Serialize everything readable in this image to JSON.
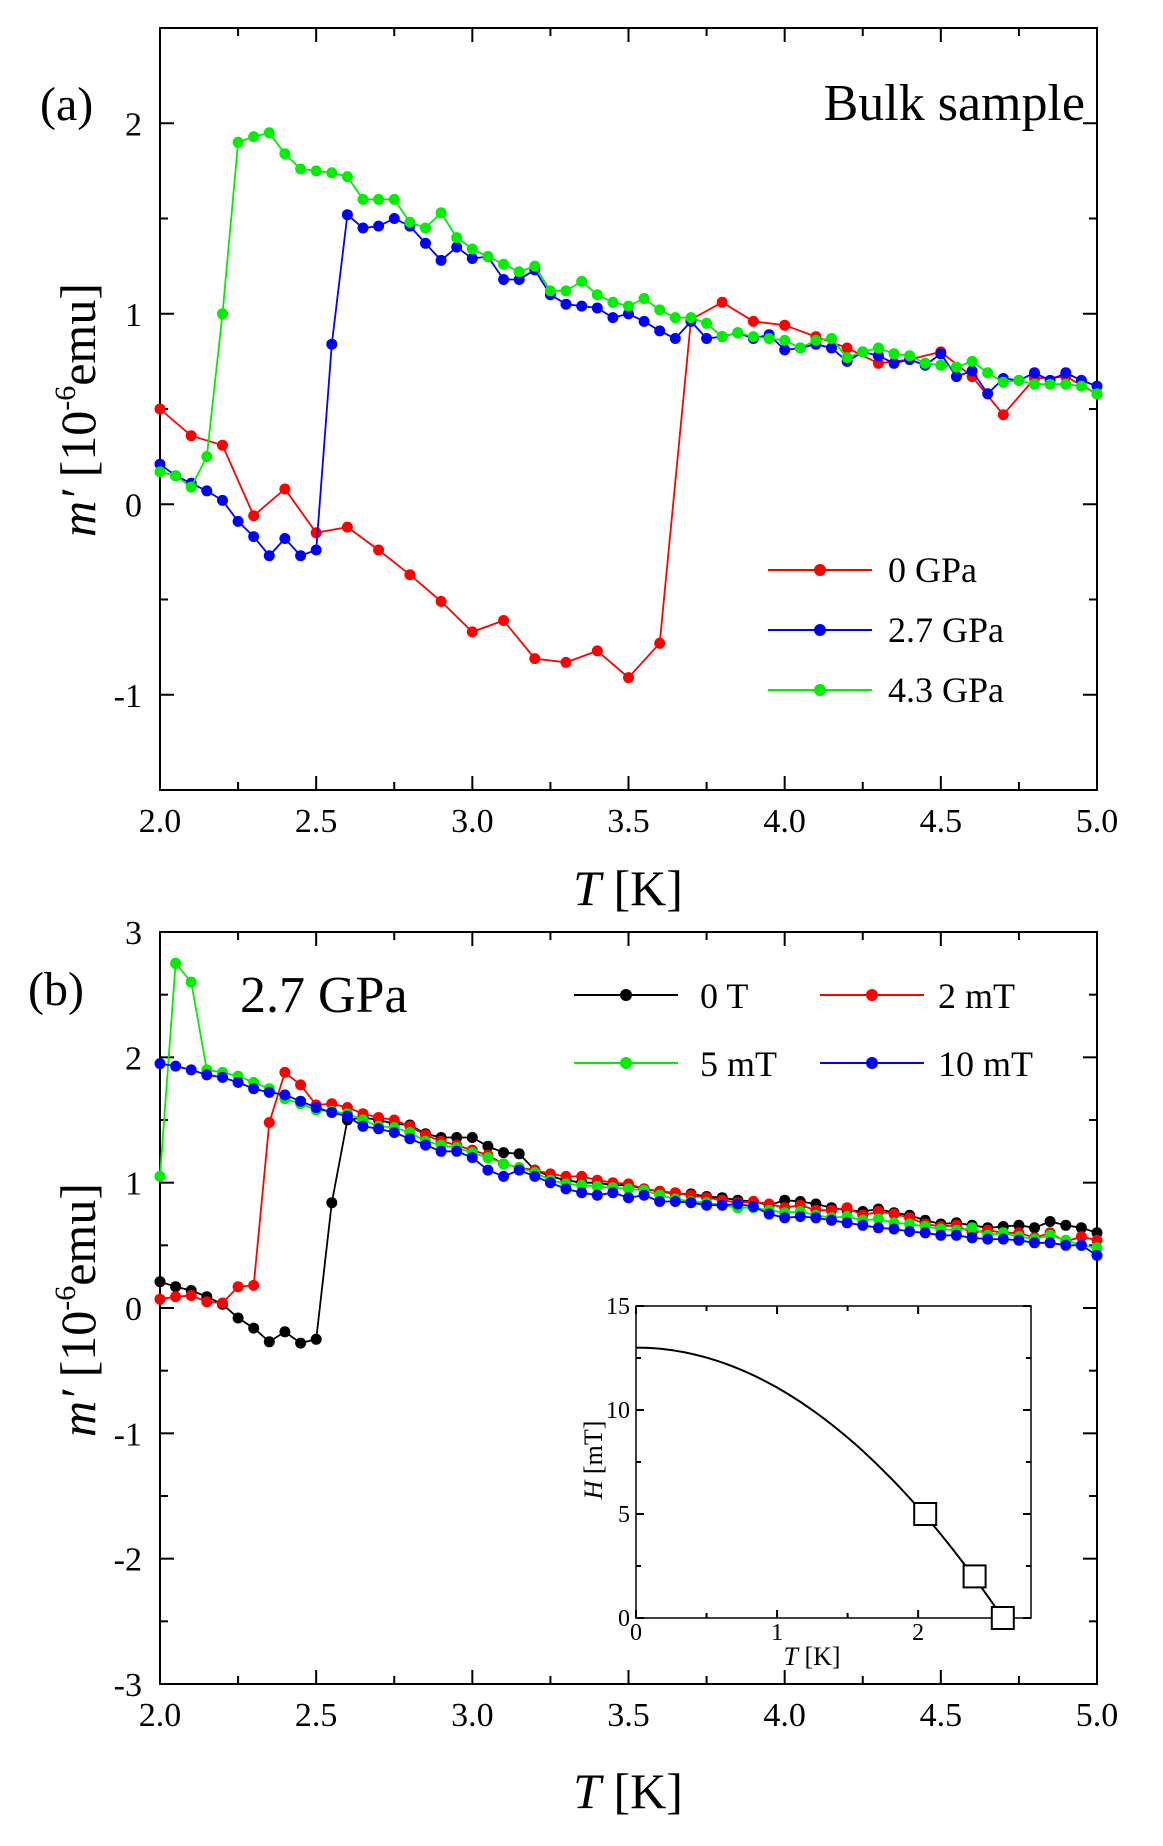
{
  "chart_data": [
    {
      "panel": "(a)",
      "type": "line",
      "annotation": "Bulk sample",
      "xlabel_italic": "T",
      "xlabel_unit": " [K]",
      "ylabel_italic": "m′",
      "ylabel_prefix": " [10",
      "ylabel_exp": "-6",
      "ylabel_suffix": "emu]",
      "xlim": [
        2.0,
        5.0
      ],
      "ylim": [
        -1.5,
        2.5
      ],
      "xticks": [
        2.0,
        2.5,
        3.0,
        3.5,
        4.0,
        4.5,
        5.0
      ],
      "xtick_labels": [
        "2.0",
        "2.5",
        "3.0",
        "3.5",
        "4.0",
        "4.5",
        "5.0"
      ],
      "yticks": [
        -1,
        0,
        1,
        2
      ],
      "ytick_labels": [
        "-1",
        "0",
        "1",
        "2"
      ],
      "legend": "center-right",
      "series": [
        {
          "name": "0 GPa",
          "color": "#ff0000",
          "x": [
            2.0,
            2.1,
            2.2,
            2.3,
            2.4,
            2.5,
            2.6,
            2.7,
            2.8,
            2.9,
            3.0,
            3.1,
            3.2,
            3.3,
            3.4,
            3.5,
            3.6,
            3.7,
            3.8,
            3.9,
            4.0,
            4.1,
            4.2,
            4.3,
            4.4,
            4.5,
            4.6,
            4.7,
            4.8,
            4.9,
            5.0
          ],
          "y": [
            0.5,
            0.36,
            0.31,
            -0.06,
            0.08,
            -0.15,
            -0.12,
            -0.24,
            -0.37,
            -0.51,
            -0.67,
            -0.61,
            -0.81,
            -0.83,
            -0.77,
            -0.91,
            -0.73,
            0.97,
            1.06,
            0.96,
            0.94,
            0.88,
            0.82,
            0.74,
            0.76,
            0.8,
            0.67,
            0.47,
            0.66,
            0.67,
            0.58
          ]
        },
        {
          "name": "2.7 GPa",
          "color": "#0000ff",
          "x": [
            2.0,
            2.05,
            2.1,
            2.15,
            2.2,
            2.25,
            2.3,
            2.35,
            2.4,
            2.45,
            2.5,
            2.55,
            2.6,
            2.65,
            2.7,
            2.75,
            2.8,
            2.85,
            2.9,
            2.95,
            3.0,
            3.05,
            3.1,
            3.15,
            3.2,
            3.25,
            3.3,
            3.35,
            3.4,
            3.45,
            3.5,
            3.55,
            3.6,
            3.65,
            3.7,
            3.75,
            3.8,
            3.85,
            3.9,
            3.95,
            4.0,
            4.05,
            4.1,
            4.15,
            4.2,
            4.25,
            4.3,
            4.35,
            4.4,
            4.45,
            4.5,
            4.55,
            4.6,
            4.65,
            4.7,
            4.75,
            4.8,
            4.85,
            4.9,
            4.95,
            5.0
          ],
          "y": [
            0.21,
            0.15,
            0.11,
            0.07,
            0.02,
            -0.09,
            -0.17,
            -0.27,
            -0.18,
            -0.27,
            -0.24,
            0.84,
            1.52,
            1.45,
            1.46,
            1.5,
            1.46,
            1.37,
            1.28,
            1.35,
            1.29,
            1.3,
            1.18,
            1.18,
            1.23,
            1.1,
            1.05,
            1.04,
            1.03,
            0.98,
            1.0,
            0.96,
            0.91,
            0.87,
            0.96,
            0.87,
            0.88,
            0.9,
            0.87,
            0.89,
            0.81,
            0.82,
            0.84,
            0.82,
            0.75,
            0.8,
            0.78,
            0.74,
            0.76,
            0.73,
            0.79,
            0.67,
            0.7,
            0.58,
            0.66,
            0.65,
            0.69,
            0.65,
            0.69,
            0.65,
            0.62
          ]
        },
        {
          "name": "4.3 GPa",
          "color": "#00ee00",
          "x": [
            2.0,
            2.05,
            2.1,
            2.15,
            2.2,
            2.25,
            2.3,
            2.35,
            2.4,
            2.45,
            2.5,
            2.55,
            2.6,
            2.65,
            2.7,
            2.75,
            2.8,
            2.85,
            2.9,
            2.95,
            3.0,
            3.05,
            3.1,
            3.15,
            3.2,
            3.25,
            3.3,
            3.35,
            3.4,
            3.45,
            3.5,
            3.55,
            3.6,
            3.65,
            3.7,
            3.75,
            3.8,
            3.85,
            3.9,
            3.95,
            4.0,
            4.05,
            4.1,
            4.15,
            4.2,
            4.25,
            4.3,
            4.35,
            4.4,
            4.45,
            4.5,
            4.55,
            4.6,
            4.65,
            4.7,
            4.75,
            4.8,
            4.85,
            4.9,
            4.95,
            5.0
          ],
          "y": [
            0.17,
            0.15,
            0.09,
            0.25,
            1.0,
            1.9,
            1.93,
            1.95,
            1.84,
            1.76,
            1.75,
            1.74,
            1.72,
            1.6,
            1.6,
            1.6,
            1.48,
            1.45,
            1.53,
            1.4,
            1.34,
            1.3,
            1.26,
            1.22,
            1.25,
            1.12,
            1.12,
            1.17,
            1.1,
            1.06,
            1.04,
            1.08,
            1.02,
            0.98,
            0.98,
            0.95,
            0.88,
            0.9,
            0.88,
            0.87,
            0.86,
            0.82,
            0.86,
            0.87,
            0.77,
            0.8,
            0.82,
            0.79,
            0.78,
            0.74,
            0.73,
            0.72,
            0.75,
            0.69,
            0.64,
            0.65,
            0.63,
            0.63,
            0.63,
            0.62,
            0.58
          ]
        }
      ]
    },
    {
      "panel": "(b)",
      "type": "line",
      "annotation": "2.7 GPa",
      "xlabel_italic": "T",
      "xlabel_unit": " [K]",
      "ylabel_italic": "m′",
      "ylabel_prefix": " [10",
      "ylabel_exp": "-6",
      "ylabel_suffix": "emu]",
      "xlim": [
        2.0,
        5.0
      ],
      "ylim": [
        -3,
        3
      ],
      "xticks": [
        2.0,
        2.5,
        3.0,
        3.5,
        4.0,
        4.5,
        5.0
      ],
      "xtick_labels": [
        "2.0",
        "2.5",
        "3.0",
        "3.5",
        "4.0",
        "4.5",
        "5.0"
      ],
      "yticks": [
        -3,
        -2,
        -1,
        0,
        1,
        2,
        3
      ],
      "ytick_labels": [
        "-3",
        "-2",
        "-1",
        "0",
        "1",
        "2",
        "3"
      ],
      "legend": "top-right",
      "series": [
        {
          "name": "0 T",
          "color": "#000000",
          "x": [
            2.0,
            2.05,
            2.1,
            2.15,
            2.2,
            2.25,
            2.3,
            2.35,
            2.4,
            2.45,
            2.5,
            2.55,
            2.6,
            2.65,
            2.7,
            2.75,
            2.8,
            2.85,
            2.9,
            2.95,
            3.0,
            3.05,
            3.1,
            3.15,
            3.2,
            3.25,
            3.3,
            3.35,
            3.4,
            3.45,
            3.5,
            3.55,
            3.6,
            3.65,
            3.7,
            3.75,
            3.8,
            3.85,
            3.9,
            3.95,
            4.0,
            4.05,
            4.1,
            4.15,
            4.2,
            4.25,
            4.3,
            4.35,
            4.4,
            4.45,
            4.5,
            4.55,
            4.6,
            4.65,
            4.7,
            4.75,
            4.8,
            4.85,
            4.9,
            4.95,
            5.0
          ],
          "y": [
            0.21,
            0.17,
            0.14,
            0.09,
            0.03,
            -0.08,
            -0.16,
            -0.27,
            -0.19,
            -0.28,
            -0.25,
            0.84,
            1.5,
            1.52,
            1.5,
            1.47,
            1.46,
            1.39,
            1.36,
            1.36,
            1.36,
            1.29,
            1.24,
            1.23,
            1.1,
            1.05,
            1.02,
            1.0,
            1.0,
            0.98,
            0.98,
            0.95,
            0.93,
            0.91,
            0.91,
            0.89,
            0.88,
            0.86,
            0.85,
            0.82,
            0.86,
            0.85,
            0.83,
            0.8,
            0.78,
            0.77,
            0.79,
            0.76,
            0.74,
            0.7,
            0.67,
            0.68,
            0.66,
            0.64,
            0.65,
            0.66,
            0.64,
            0.69,
            0.66,
            0.64,
            0.6
          ]
        },
        {
          "name": "2 mT",
          "color": "#ff0000",
          "x": [
            2.0,
            2.05,
            2.1,
            2.15,
            2.2,
            2.25,
            2.3,
            2.35,
            2.4,
            2.45,
            2.5,
            2.55,
            2.6,
            2.65,
            2.7,
            2.75,
            2.8,
            2.85,
            2.9,
            2.95,
            3.0,
            3.05,
            3.1,
            3.15,
            3.2,
            3.25,
            3.3,
            3.35,
            3.4,
            3.45,
            3.5,
            3.55,
            3.6,
            3.65,
            3.7,
            3.75,
            3.8,
            3.85,
            3.9,
            3.95,
            4.0,
            4.05,
            4.1,
            4.15,
            4.2,
            4.25,
            4.3,
            4.35,
            4.4,
            4.45,
            4.5,
            4.55,
            4.6,
            4.65,
            4.7,
            4.75,
            4.8,
            4.85,
            4.9,
            4.95,
            5.0
          ],
          "y": [
            0.07,
            0.09,
            0.1,
            0.05,
            0.04,
            0.17,
            0.18,
            1.48,
            1.88,
            1.78,
            1.62,
            1.63,
            1.6,
            1.55,
            1.52,
            1.5,
            1.45,
            1.38,
            1.33,
            1.3,
            1.26,
            1.22,
            1.15,
            1.12,
            1.1,
            1.07,
            1.05,
            1.05,
            1.02,
            1.0,
            0.99,
            0.95,
            0.93,
            0.92,
            0.9,
            0.88,
            0.86,
            0.84,
            0.85,
            0.83,
            0.8,
            0.82,
            0.78,
            0.78,
            0.8,
            0.74,
            0.77,
            0.75,
            0.72,
            0.67,
            0.65,
            0.66,
            0.6,
            0.62,
            0.6,
            0.6,
            0.56,
            0.6,
            0.53,
            0.57,
            0.54
          ]
        },
        {
          "name": "5 mT",
          "color": "#00ee00",
          "x": [
            2.0,
            2.05,
            2.1,
            2.15,
            2.2,
            2.25,
            2.3,
            2.35,
            2.4,
            2.45,
            2.5,
            2.55,
            2.6,
            2.65,
            2.7,
            2.75,
            2.8,
            2.85,
            2.9,
            2.95,
            3.0,
            3.05,
            3.1,
            3.15,
            3.2,
            3.25,
            3.3,
            3.35,
            3.4,
            3.45,
            3.5,
            3.55,
            3.6,
            3.65,
            3.7,
            3.75,
            3.8,
            3.85,
            3.9,
            3.95,
            4.0,
            4.05,
            4.1,
            4.15,
            4.2,
            4.25,
            4.3,
            4.35,
            4.4,
            4.45,
            4.5,
            4.55,
            4.6,
            4.65,
            4.7,
            4.75,
            4.8,
            4.85,
            4.9,
            4.95,
            5.0
          ],
          "y": [
            1.05,
            2.75,
            2.6,
            1.9,
            1.88,
            1.85,
            1.8,
            1.75,
            1.67,
            1.63,
            1.58,
            1.57,
            1.55,
            1.5,
            1.45,
            1.44,
            1.4,
            1.33,
            1.3,
            1.28,
            1.24,
            1.2,
            1.15,
            1.12,
            1.08,
            1.02,
            0.99,
            0.98,
            0.97,
            0.96,
            0.95,
            0.94,
            0.9,
            0.87,
            0.85,
            0.84,
            0.82,
            0.8,
            0.8,
            0.78,
            0.76,
            0.77,
            0.74,
            0.72,
            0.73,
            0.7,
            0.71,
            0.68,
            0.67,
            0.65,
            0.63,
            0.62,
            0.64,
            0.58,
            0.6,
            0.57,
            0.55,
            0.58,
            0.54,
            0.5,
            0.48
          ]
        },
        {
          "name": "10 mT",
          "color": "#0000ff",
          "x": [
            2.0,
            2.05,
            2.1,
            2.15,
            2.2,
            2.25,
            2.3,
            2.35,
            2.4,
            2.45,
            2.5,
            2.55,
            2.6,
            2.65,
            2.7,
            2.75,
            2.8,
            2.85,
            2.9,
            2.95,
            3.0,
            3.05,
            3.1,
            3.15,
            3.2,
            3.25,
            3.3,
            3.35,
            3.4,
            3.45,
            3.5,
            3.55,
            3.6,
            3.65,
            3.7,
            3.75,
            3.8,
            3.85,
            3.9,
            3.95,
            4.0,
            4.05,
            4.1,
            4.15,
            4.2,
            4.25,
            4.3,
            4.35,
            4.4,
            4.45,
            4.5,
            4.55,
            4.6,
            4.65,
            4.7,
            4.75,
            4.8,
            4.85,
            4.9,
            4.95,
            5.0
          ],
          "y": [
            1.95,
            1.93,
            1.9,
            1.86,
            1.84,
            1.8,
            1.75,
            1.72,
            1.7,
            1.65,
            1.6,
            1.56,
            1.53,
            1.45,
            1.43,
            1.4,
            1.35,
            1.3,
            1.25,
            1.25,
            1.2,
            1.1,
            1.05,
            1.1,
            1.05,
            1.0,
            0.95,
            0.92,
            0.9,
            0.92,
            0.88,
            0.9,
            0.85,
            0.85,
            0.84,
            0.82,
            0.82,
            0.83,
            0.81,
            0.75,
            0.72,
            0.73,
            0.72,
            0.7,
            0.68,
            0.66,
            0.64,
            0.63,
            0.61,
            0.6,
            0.58,
            0.58,
            0.56,
            0.55,
            0.55,
            0.54,
            0.52,
            0.52,
            0.5,
            0.5,
            0.42
          ]
        }
      ]
    },
    {
      "panel": "(b)-inset",
      "type": "line",
      "xlabel_italic": "T",
      "xlabel_unit": " [K]",
      "ylabel_italic": "H",
      "ylabel_unit": " [mT]",
      "xlim": [
        0,
        2.8
      ],
      "ylim": [
        0,
        15
      ],
      "xticks": [
        0,
        1,
        2
      ],
      "xtick_labels": [
        "0",
        "1",
        "2"
      ],
      "yticks": [
        0,
        5,
        10,
        15
      ],
      "ytick_labels": [
        "0",
        "5",
        "10",
        "15"
      ],
      "fit_curve": {
        "Hc0": 13.0,
        "Tc": 2.6,
        "form": "H = Hc0 * (1 - (T/Tc)^2)"
      },
      "points": {
        "x": [
          2.05,
          2.4,
          2.6
        ],
        "y": [
          5,
          2,
          0
        ]
      }
    }
  ]
}
